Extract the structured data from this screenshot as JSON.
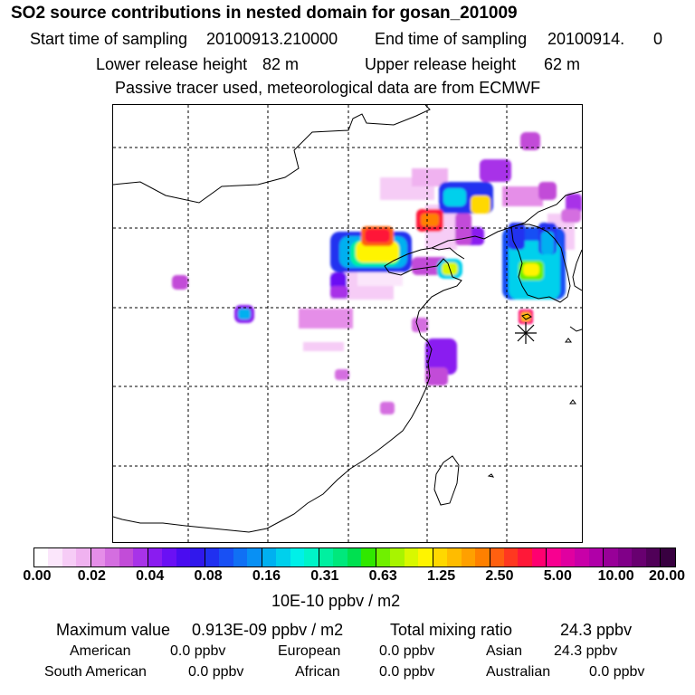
{
  "header": {
    "title": "SO2 source contributions in nested domain for gosan_201009",
    "start_label": "Start time of sampling",
    "start_value": "20100913.210000",
    "end_label": "End time of sampling",
    "end_value": "20100914.",
    "end_suffix": "0",
    "lower_label": "Lower release height",
    "lower_value": "82 m",
    "upper_label": "Upper release height",
    "upper_value": "62 m",
    "note": "Passive tracer used, meteorological data are from ECMWF"
  },
  "colorbar": {
    "tick_labels": [
      "0.00",
      "0.02",
      "0.04",
      "0.08",
      "0.16",
      "0.31",
      "0.63",
      "1.25",
      "2.50",
      "5.00",
      "10.00",
      "20.00"
    ],
    "colors": [
      "#ffffff",
      "#fbe6fb",
      "#f6ccf6",
      "#f0b2f0",
      "#e58ee8",
      "#d46ee0",
      "#c24cd8",
      "#a833e8",
      "#8a1cf0",
      "#6a10f4",
      "#4a0cf0",
      "#3018ec",
      "#2030f0",
      "#1850f4",
      "#1070f4",
      "#0890f4",
      "#00b0f0",
      "#00d0ec",
      "#00f0e8",
      "#00f4c8",
      "#00f0a0",
      "#00e87c",
      "#00e050",
      "#30e800",
      "#70f000",
      "#a8f400",
      "#d8f800",
      "#fff400",
      "#ffd800",
      "#ffbc00",
      "#ffa000",
      "#ff8000",
      "#ff6010",
      "#ff3820",
      "#ff1838",
      "#ff0070",
      "#f80090",
      "#e000a0",
      "#c800a8",
      "#b000a8",
      "#980098",
      "#800088",
      "#680070",
      "#500058",
      "#380040"
    ],
    "units": "10E-10 ppbv / m2"
  },
  "summary": {
    "max_label": "Maximum value",
    "max_value": "0.913E-09 ppbv / m2",
    "total_label": "Total mixing ratio",
    "total_value": "24.3 ppbv"
  },
  "regions": [
    {
      "name": "American",
      "value": "0.0 ppbv"
    },
    {
      "name": "European",
      "value": "0.0 ppbv"
    },
    {
      "name": "Asian",
      "value": "24.3 ppbv"
    },
    {
      "name": "South American",
      "value": "0.0 ppbv"
    },
    {
      "name": "African",
      "value": "0.0 ppbv"
    },
    {
      "name": "Australian",
      "value": "0.0 ppbv"
    }
  ]
}
